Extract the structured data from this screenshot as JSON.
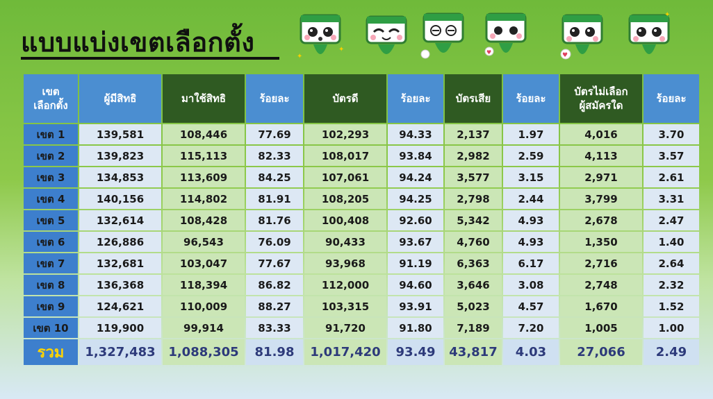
{
  "title": "แบบแบ่งเขตเลือกตั้ง",
  "colors": {
    "header_blue": "#4b8ed1",
    "header_dark_green": "#2f5a22",
    "percent_red": "#c0101a",
    "total_label_yellow": "#ffd400"
  },
  "mascot_icons": [
    "mascot-surprised-icon",
    "mascot-happy-icon",
    "mascot-dizzy-icon",
    "mascot-heart-icon",
    "mascot-love-icon",
    "mascot-cheer-icon"
  ],
  "headers": {
    "district_line1": "เขต",
    "district_line2": "เลือกตั้ง",
    "eligible": "ผู้มีสิทธิ",
    "turnout": "มาใช้สิทธิ",
    "pct_turnout": "ร้อยละ",
    "good_ballots": "บัตรดี",
    "pct_good": "ร้อยละ",
    "spoiled": "บัตรเสีย",
    "pct_spoiled": "ร้อยละ",
    "no_vote_line1": "บัตรไม่เลือก",
    "no_vote_line2": "ผู้สมัครใด",
    "pct_no_vote": "ร้อยละ"
  },
  "rows": [
    {
      "district": "เขต 1",
      "eligible": "139,581",
      "turnout": "108,446",
      "pct_turnout": "77.69",
      "good": "102,293",
      "pct_good": "94.33",
      "spoiled": "2,137",
      "pct_spoiled": "1.97",
      "no_vote": "4,016",
      "pct_no_vote": "3.70"
    },
    {
      "district": "เขต 2",
      "eligible": "139,823",
      "turnout": "115,113",
      "pct_turnout": "82.33",
      "good": "108,017",
      "pct_good": "93.84",
      "spoiled": "2,982",
      "pct_spoiled": "2.59",
      "no_vote": "4,113",
      "pct_no_vote": "3.57"
    },
    {
      "district": "เขต 3",
      "eligible": "134,853",
      "turnout": "113,609",
      "pct_turnout": "84.25",
      "good": "107,061",
      "pct_good": "94.24",
      "spoiled": "3,577",
      "pct_spoiled": "3.15",
      "no_vote": "2,971",
      "pct_no_vote": "2.61"
    },
    {
      "district": "เขต 4",
      "eligible": "140,156",
      "turnout": "114,802",
      "pct_turnout": "81.91",
      "good": "108,205",
      "pct_good": "94.25",
      "spoiled": "2,798",
      "pct_spoiled": "2.44",
      "no_vote": "3,799",
      "pct_no_vote": "3.31"
    },
    {
      "district": "เขต 5",
      "eligible": "132,614",
      "turnout": "108,428",
      "pct_turnout": "81.76",
      "good": "100,408",
      "pct_good": "92.60",
      "spoiled": "5,342",
      "pct_spoiled": "4.93",
      "no_vote": "2,678",
      "pct_no_vote": "2.47"
    },
    {
      "district": "เขต 6",
      "eligible": "126,886",
      "turnout": "96,543",
      "pct_turnout": "76.09",
      "good": "90,433",
      "pct_good": "93.67",
      "spoiled": "4,760",
      "pct_spoiled": "4.93",
      "no_vote": "1,350",
      "pct_no_vote": "1.40"
    },
    {
      "district": "เขต 7",
      "eligible": "132,681",
      "turnout": "103,047",
      "pct_turnout": "77.67",
      "good": "93,968",
      "pct_good": "91.19",
      "spoiled": "6,363",
      "pct_spoiled": "6.17",
      "no_vote": "2,716",
      "pct_no_vote": "2.64"
    },
    {
      "district": "เขต 8",
      "eligible": "136,368",
      "turnout": "118,394",
      "pct_turnout": "86.82",
      "good": "112,000",
      "pct_good": "94.60",
      "spoiled": "3,646",
      "pct_spoiled": "3.08",
      "no_vote": "2,748",
      "pct_no_vote": "2.32"
    },
    {
      "district": "เขต 9",
      "eligible": "124,621",
      "turnout": "110,009",
      "pct_turnout": "88.27",
      "good": "103,315",
      "pct_good": "93.91",
      "spoiled": "5,023",
      "pct_spoiled": "4.57",
      "no_vote": "1,670",
      "pct_no_vote": "1.52"
    },
    {
      "district": "เขต 10",
      "eligible": "119,900",
      "turnout": "99,914",
      "pct_turnout": "83.33",
      "good": "91,720",
      "pct_good": "91.80",
      "spoiled": "7,189",
      "pct_spoiled": "7.20",
      "no_vote": "1,005",
      "pct_no_vote": "1.00"
    }
  ],
  "total": {
    "district": "รวม",
    "eligible": "1,327,483",
    "turnout": "1,088,305",
    "pct_turnout": "81.98",
    "good": "1,017,420",
    "pct_good": "93.49",
    "spoiled": "43,817",
    "pct_spoiled": "4.03",
    "no_vote": "27,066",
    "pct_no_vote": "2.49"
  }
}
